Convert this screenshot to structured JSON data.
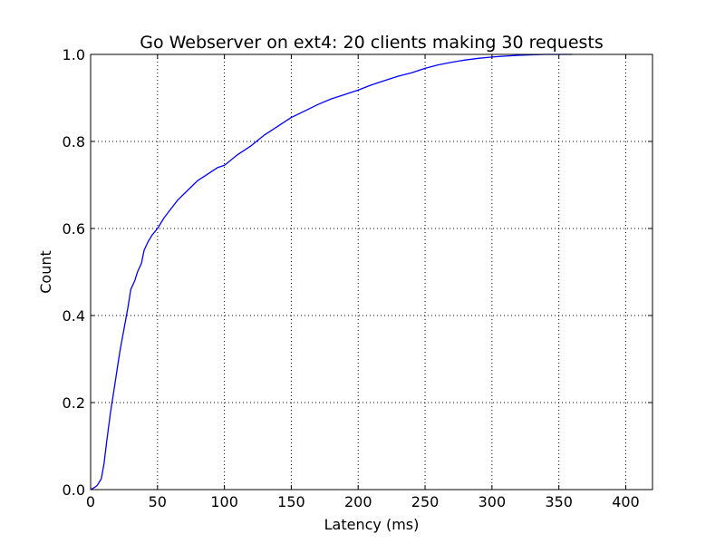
{
  "chart_data": {
    "type": "line",
    "title": "Go Webserver on ext4: 20 clients making 30 requests",
    "xlabel": "Latency (ms)",
    "ylabel": "Count",
    "xlim": [
      0,
      420
    ],
    "ylim": [
      0,
      1.0
    ],
    "x_ticks": [
      0,
      50,
      100,
      150,
      200,
      250,
      300,
      350,
      400
    ],
    "x_tick_labels": [
      "0",
      "50",
      "100",
      "150",
      "200",
      "250",
      "300",
      "350",
      "400"
    ],
    "y_ticks": [
      0.0,
      0.2,
      0.4,
      0.6,
      0.8,
      1.0
    ],
    "y_tick_labels": [
      "0.0",
      "0.2",
      "0.4",
      "0.6",
      "0.8",
      "1.0"
    ],
    "grid": true,
    "grid_style": "dotted",
    "legend": false,
    "colors": {
      "line": "#0000ff",
      "axes": "#000000",
      "grid": "#000000",
      "background": "#ffffff"
    },
    "series": [
      {
        "x": [
          0,
          3,
          5,
          8,
          10,
          12,
          15,
          18,
          20,
          22,
          25,
          28,
          30,
          33,
          35,
          38,
          40,
          43,
          46,
          50,
          55,
          60,
          65,
          70,
          75,
          80,
          85,
          90,
          95,
          100,
          110,
          120,
          130,
          140,
          150,
          160,
          170,
          180,
          190,
          200,
          210,
          220,
          230,
          240,
          250,
          260,
          270,
          280,
          290,
          300,
          310,
          320,
          330,
          340,
          350,
          360
        ],
        "y": [
          0.0,
          0.005,
          0.01,
          0.025,
          0.06,
          0.11,
          0.18,
          0.24,
          0.28,
          0.32,
          0.37,
          0.42,
          0.46,
          0.48,
          0.5,
          0.52,
          0.55,
          0.57,
          0.585,
          0.6,
          0.625,
          0.645,
          0.665,
          0.68,
          0.695,
          0.71,
          0.72,
          0.73,
          0.74,
          0.745,
          0.77,
          0.79,
          0.815,
          0.835,
          0.855,
          0.87,
          0.885,
          0.898,
          0.908,
          0.918,
          0.93,
          0.94,
          0.95,
          0.958,
          0.968,
          0.976,
          0.982,
          0.987,
          0.991,
          0.994,
          0.996,
          0.998,
          0.999,
          1.0,
          1.0,
          1.0
        ]
      }
    ]
  }
}
